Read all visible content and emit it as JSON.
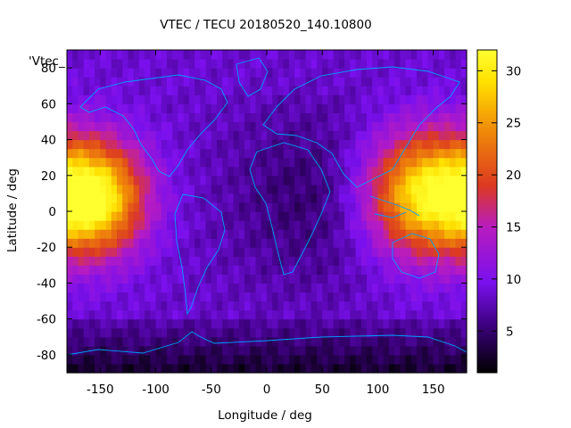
{
  "chart_data": {
    "type": "heatmap",
    "title": "VTEC / TECU 20180520_140.10800",
    "xlabel": "Longitude / deg",
    "ylabel": "Latitude / deg",
    "xlim": [
      -180,
      180
    ],
    "ylim": [
      -90,
      90
    ],
    "xticks": [
      -150,
      -100,
      -50,
      0,
      50,
      100,
      150
    ],
    "yticks": [
      -80,
      -60,
      -40,
      -20,
      0,
      20,
      40,
      60,
      80
    ],
    "grid": false,
    "legend_label": "'Vtec_",
    "colorbar": {
      "range": [
        1,
        32
      ],
      "ticks": [
        5,
        10,
        15,
        20,
        25,
        30
      ],
      "colormap": [
        "#000000",
        "#3a0078",
        "#7a10ee",
        "#b81cc0",
        "#dc3a20",
        "#f08a08",
        "#ffe000",
        "#ffff30"
      ]
    },
    "grid_resolution_deg": [
      5,
      5
    ],
    "field_model": {
      "background_tecu": 8.5,
      "blobs": [
        {
          "lon": -155,
          "lat": 8,
          "peak": 22.5,
          "lon_sigma": 32,
          "lat_sigma": 22
        },
        {
          "lon": 140,
          "lat": 10,
          "peak": 21.0,
          "lon_sigma": 36,
          "lat_sigma": 24
        },
        {
          "lon": 40,
          "lat": 8,
          "peak": -3.5,
          "lon_sigma": 55,
          "lat_sigma": 35
        }
      ],
      "polar_south_low_tecu": 2.5,
      "polar_north_tecu": 9.0
    },
    "overlay": "coastlines"
  }
}
